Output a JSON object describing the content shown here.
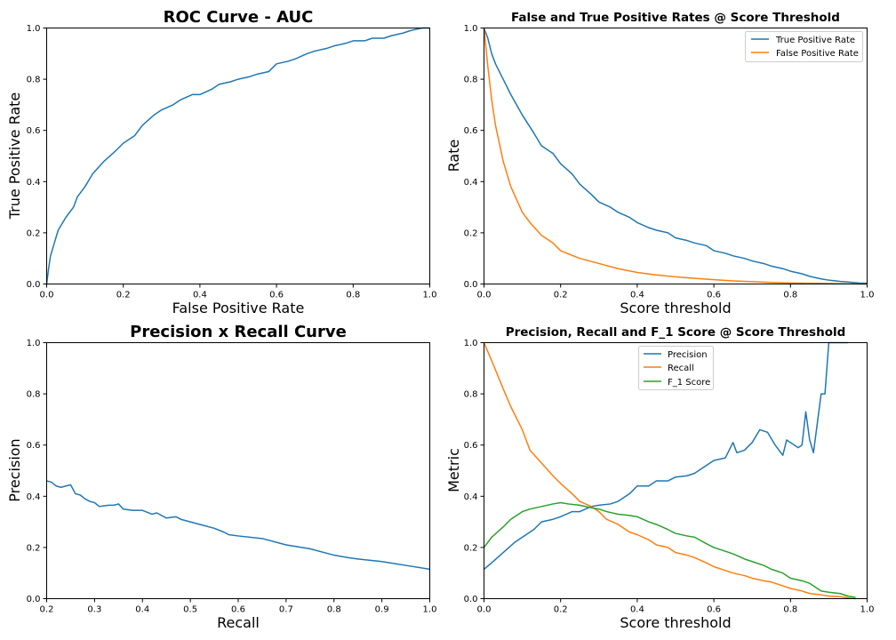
{
  "chart_data": [
    {
      "type": "line",
      "title": "ROC Curve - AUC",
      "xlabel": "False Positive Rate",
      "ylabel": "True Positive Rate",
      "xlim": [
        0,
        1
      ],
      "ylim": [
        0,
        1
      ],
      "xticks": [
        "0.0",
        "0.2",
        "0.4",
        "0.6",
        "0.8",
        "1.0"
      ],
      "yticks": [
        "0.0",
        "0.2",
        "0.4",
        "0.6",
        "0.8",
        "1.0"
      ],
      "series": [
        {
          "color": "#1f77b4",
          "x": [
            0.0,
            0.005,
            0.01,
            0.02,
            0.03,
            0.05,
            0.07,
            0.08,
            0.1,
            0.12,
            0.15,
            0.18,
            0.2,
            0.23,
            0.25,
            0.28,
            0.3,
            0.33,
            0.35,
            0.38,
            0.4,
            0.43,
            0.45,
            0.48,
            0.5,
            0.53,
            0.55,
            0.58,
            0.6,
            0.63,
            0.65,
            0.68,
            0.7,
            0.73,
            0.75,
            0.78,
            0.8,
            0.83,
            0.85,
            0.88,
            0.9,
            0.93,
            0.95,
            0.98,
            1.0
          ],
          "y": [
            0.0,
            0.06,
            0.11,
            0.16,
            0.21,
            0.26,
            0.3,
            0.34,
            0.38,
            0.43,
            0.48,
            0.52,
            0.55,
            0.58,
            0.62,
            0.66,
            0.68,
            0.7,
            0.72,
            0.74,
            0.74,
            0.76,
            0.78,
            0.79,
            0.8,
            0.81,
            0.82,
            0.83,
            0.86,
            0.87,
            0.88,
            0.9,
            0.91,
            0.92,
            0.93,
            0.94,
            0.95,
            0.95,
            0.96,
            0.96,
            0.97,
            0.98,
            0.99,
            1.0,
            1.0
          ]
        }
      ]
    },
    {
      "type": "line",
      "title": "False and True Positive Rates @ Score Threshold",
      "xlabel": "Score threshold",
      "ylabel": "Rate",
      "xlim": [
        0,
        1
      ],
      "ylim": [
        0,
        1
      ],
      "xticks": [
        "0.0",
        "0.2",
        "0.4",
        "0.6",
        "0.8",
        "1.0"
      ],
      "yticks": [
        "0.0",
        "0.2",
        "0.4",
        "0.6",
        "0.8",
        "1.0"
      ],
      "legend_position": "top-right",
      "series": [
        {
          "name": "True Positive Rate",
          "color": "#1f77b4",
          "x": [
            0.0,
            0.01,
            0.02,
            0.03,
            0.05,
            0.07,
            0.1,
            0.13,
            0.15,
            0.18,
            0.2,
            0.23,
            0.25,
            0.28,
            0.3,
            0.33,
            0.35,
            0.38,
            0.4,
            0.43,
            0.45,
            0.48,
            0.5,
            0.53,
            0.55,
            0.58,
            0.6,
            0.63,
            0.65,
            0.68,
            0.7,
            0.73,
            0.75,
            0.78,
            0.8,
            0.83,
            0.85,
            0.88,
            0.9,
            0.93,
            0.95,
            0.98,
            1.0
          ],
          "y": [
            1.0,
            0.96,
            0.9,
            0.86,
            0.8,
            0.74,
            0.66,
            0.59,
            0.54,
            0.51,
            0.47,
            0.43,
            0.39,
            0.35,
            0.32,
            0.3,
            0.28,
            0.26,
            0.24,
            0.22,
            0.21,
            0.2,
            0.18,
            0.17,
            0.16,
            0.15,
            0.13,
            0.12,
            0.11,
            0.1,
            0.09,
            0.08,
            0.07,
            0.06,
            0.05,
            0.04,
            0.03,
            0.02,
            0.015,
            0.01,
            0.008,
            0.004,
            0.003
          ]
        },
        {
          "name": "False Positive Rate",
          "color": "#ff7f0e",
          "x": [
            0.0,
            0.01,
            0.02,
            0.03,
            0.05,
            0.07,
            0.1,
            0.12,
            0.15,
            0.18,
            0.2,
            0.25,
            0.3,
            0.35,
            0.4,
            0.45,
            0.5,
            0.55,
            0.6,
            0.65,
            0.7,
            0.75,
            0.8,
            0.85,
            0.9,
            0.95,
            1.0
          ],
          "y": [
            1.0,
            0.85,
            0.72,
            0.62,
            0.48,
            0.38,
            0.28,
            0.24,
            0.19,
            0.16,
            0.13,
            0.1,
            0.08,
            0.06,
            0.045,
            0.035,
            0.028,
            0.022,
            0.017,
            0.012,
            0.009,
            0.006,
            0.004,
            0.003,
            0.002,
            0.001,
            0.0
          ]
        }
      ]
    },
    {
      "type": "line",
      "title": "Precision x Recall Curve",
      "xlabel": "Recall",
      "ylabel": "Precision",
      "xlim": [
        0.2,
        1.0
      ],
      "ylim": [
        0,
        1
      ],
      "xticks": [
        "0.2",
        "0.3",
        "0.4",
        "0.5",
        "0.6",
        "0.7",
        "0.8",
        "0.9",
        "1.0"
      ],
      "yticks": [
        "0.0",
        "0.2",
        "0.4",
        "0.6",
        "0.8",
        "1.0"
      ],
      "series": [
        {
          "color": "#1f77b4",
          "x": [
            0.2,
            0.21,
            0.22,
            0.23,
            0.24,
            0.25,
            0.26,
            0.27,
            0.28,
            0.29,
            0.3,
            0.31,
            0.32,
            0.33,
            0.34,
            0.35,
            0.36,
            0.38,
            0.4,
            0.42,
            0.43,
            0.45,
            0.47,
            0.48,
            0.5,
            0.52,
            0.55,
            0.57,
            0.58,
            0.6,
            0.65,
            0.7,
            0.75,
            0.8,
            0.83,
            0.85,
            0.9,
            0.95,
            1.0
          ],
          "y": [
            0.46,
            0.455,
            0.44,
            0.435,
            0.44,
            0.445,
            0.41,
            0.405,
            0.39,
            0.38,
            0.375,
            0.36,
            0.363,
            0.365,
            0.365,
            0.37,
            0.35,
            0.345,
            0.345,
            0.33,
            0.335,
            0.315,
            0.32,
            0.31,
            0.3,
            0.29,
            0.275,
            0.26,
            0.25,
            0.245,
            0.235,
            0.21,
            0.195,
            0.17,
            0.16,
            0.155,
            0.145,
            0.13,
            0.115
          ]
        }
      ]
    },
    {
      "type": "line",
      "title": "Precision, Recall and F_1 Score @ Score Threshold",
      "xlabel": "Score threshold",
      "ylabel": "Metric",
      "xlim": [
        0,
        1
      ],
      "ylim": [
        0,
        1
      ],
      "xticks": [
        "0.0",
        "0.2",
        "0.4",
        "0.6",
        "0.8",
        "1.0"
      ],
      "yticks": [
        "0.0",
        "0.2",
        "0.4",
        "0.6",
        "0.8",
        "1.0"
      ],
      "legend_position": "top-center",
      "series": [
        {
          "name": "Precision",
          "color": "#1f77b4",
          "x": [
            0.0,
            0.02,
            0.05,
            0.08,
            0.1,
            0.13,
            0.15,
            0.18,
            0.2,
            0.23,
            0.25,
            0.28,
            0.3,
            0.33,
            0.35,
            0.38,
            0.4,
            0.43,
            0.45,
            0.48,
            0.5,
            0.53,
            0.55,
            0.58,
            0.6,
            0.63,
            0.65,
            0.66,
            0.68,
            0.7,
            0.72,
            0.74,
            0.76,
            0.78,
            0.79,
            0.8,
            0.82,
            0.83,
            0.84,
            0.85,
            0.86,
            0.88,
            0.89,
            0.9,
            0.91,
            0.93,
            0.95
          ],
          "y": [
            0.115,
            0.14,
            0.18,
            0.22,
            0.24,
            0.27,
            0.3,
            0.31,
            0.32,
            0.34,
            0.34,
            0.36,
            0.365,
            0.37,
            0.38,
            0.41,
            0.44,
            0.44,
            0.46,
            0.46,
            0.475,
            0.48,
            0.49,
            0.52,
            0.54,
            0.55,
            0.61,
            0.57,
            0.58,
            0.61,
            0.66,
            0.65,
            0.6,
            0.56,
            0.62,
            0.61,
            0.59,
            0.6,
            0.73,
            0.62,
            0.57,
            0.8,
            0.8,
            1.0,
            1.0,
            1.0,
            1.0
          ]
        },
        {
          "name": "Recall",
          "color": "#ff7f0e",
          "x": [
            0.0,
            0.02,
            0.05,
            0.07,
            0.1,
            0.12,
            0.15,
            0.18,
            0.2,
            0.23,
            0.25,
            0.28,
            0.3,
            0.32,
            0.35,
            0.38,
            0.4,
            0.43,
            0.45,
            0.48,
            0.5,
            0.53,
            0.55,
            0.58,
            0.6,
            0.63,
            0.65,
            0.68,
            0.7,
            0.73,
            0.75,
            0.78,
            0.8,
            0.83,
            0.85,
            0.88,
            0.9,
            0.93,
            0.95,
            0.97
          ],
          "y": [
            1.0,
            0.93,
            0.82,
            0.75,
            0.66,
            0.58,
            0.53,
            0.48,
            0.45,
            0.41,
            0.38,
            0.36,
            0.34,
            0.31,
            0.29,
            0.26,
            0.25,
            0.23,
            0.21,
            0.2,
            0.18,
            0.17,
            0.16,
            0.14,
            0.125,
            0.11,
            0.1,
            0.09,
            0.08,
            0.07,
            0.065,
            0.05,
            0.04,
            0.03,
            0.02,
            0.015,
            0.01,
            0.008,
            0.003,
            0.0
          ]
        },
        {
          "name": "F_1 Score",
          "color": "#2ca02c",
          "x": [
            0.0,
            0.02,
            0.05,
            0.07,
            0.1,
            0.12,
            0.15,
            0.18,
            0.2,
            0.22,
            0.25,
            0.28,
            0.3,
            0.32,
            0.35,
            0.38,
            0.4,
            0.43,
            0.45,
            0.48,
            0.5,
            0.53,
            0.55,
            0.58,
            0.6,
            0.63,
            0.65,
            0.68,
            0.7,
            0.73,
            0.75,
            0.78,
            0.8,
            0.83,
            0.85,
            0.88,
            0.9,
            0.93,
            0.95,
            0.97
          ],
          "y": [
            0.2,
            0.24,
            0.28,
            0.31,
            0.34,
            0.35,
            0.36,
            0.37,
            0.375,
            0.37,
            0.365,
            0.355,
            0.35,
            0.34,
            0.33,
            0.325,
            0.32,
            0.3,
            0.29,
            0.27,
            0.255,
            0.245,
            0.24,
            0.215,
            0.2,
            0.185,
            0.175,
            0.155,
            0.145,
            0.13,
            0.115,
            0.1,
            0.08,
            0.07,
            0.06,
            0.03,
            0.025,
            0.02,
            0.01,
            0.005
          ]
        }
      ]
    }
  ]
}
